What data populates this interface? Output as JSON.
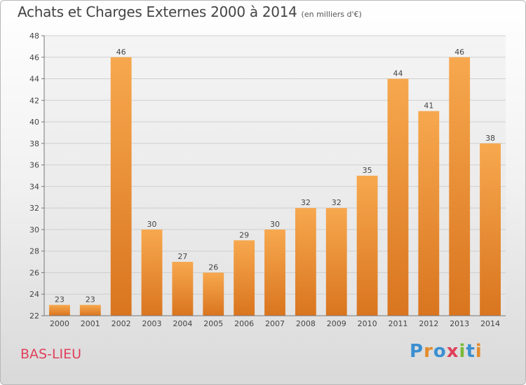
{
  "title": "Achats et Charges Externes 2000 à 2014",
  "unit": "(en milliers d'€)",
  "location": "BAS-LIEU",
  "logo": {
    "letters": [
      "P",
      "r",
      "o",
      "x",
      "i",
      "t",
      "i"
    ],
    "colors": [
      "#3a8fd0",
      "#e38b2c",
      "#3a8fd0",
      "#e0405a",
      "#7bb93a",
      "#3a8fd0",
      "#e38b2c"
    ]
  },
  "chart_data": {
    "type": "bar",
    "categories": [
      "2000",
      "2001",
      "2002",
      "2003",
      "2004",
      "2005",
      "2006",
      "2007",
      "2008",
      "2009",
      "2010",
      "2011",
      "2012",
      "2013",
      "2014"
    ],
    "values": [
      23,
      23,
      46,
      30,
      27,
      26,
      29,
      30,
      32,
      32,
      35,
      44,
      41,
      46,
      38
    ],
    "ylim": [
      22,
      48
    ],
    "yticks": [
      22,
      24,
      26,
      28,
      30,
      32,
      34,
      36,
      38,
      40,
      42,
      44,
      46,
      48
    ],
    "grid": true,
    "bar_color": "#f0a040"
  }
}
